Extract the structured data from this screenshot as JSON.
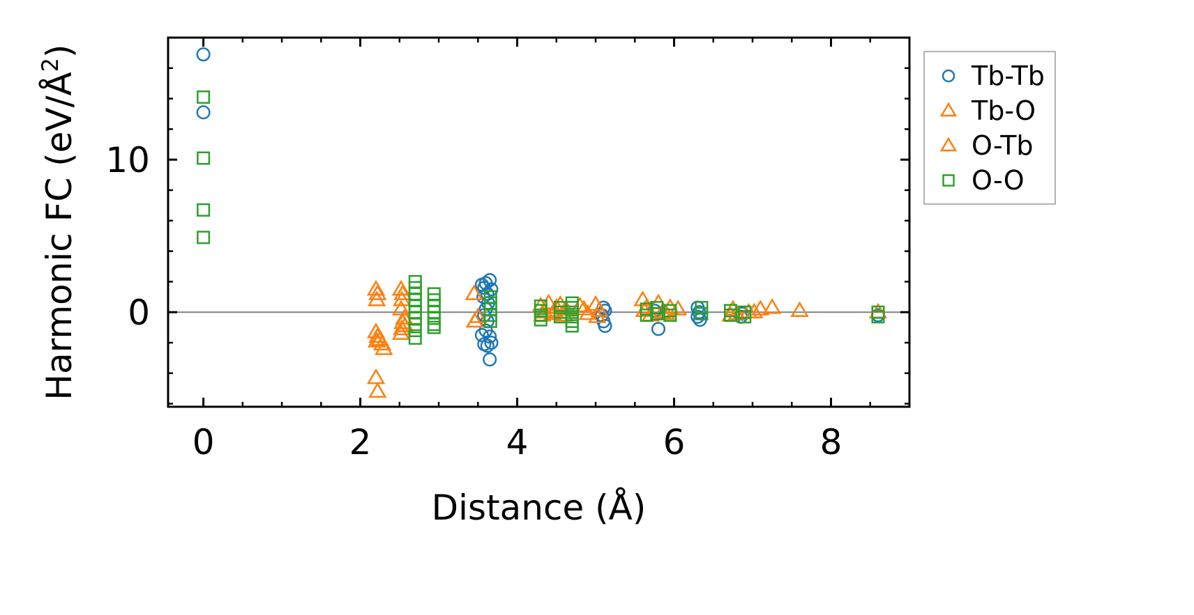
{
  "chart_data": {
    "type": "scatter",
    "xlabel": "Distance (Å)",
    "ylabel": "Harmonic FC (eV/Å²)",
    "ylabel_parts": {
      "main": "Harmonic FC (eV/Å",
      "sup": "2",
      "end": ")"
    },
    "xlim": [
      -0.45,
      9.0
    ],
    "ylim": [
      -6.2,
      18.0
    ],
    "xticks": [
      0,
      2,
      4,
      6,
      8
    ],
    "yticks": [
      0,
      10
    ],
    "x_minor_step": 0.5,
    "y_minor_step": 2,
    "zero_line": true,
    "grid": false,
    "legend_position": "outside-right",
    "series": [
      {
        "name": "Tb-Tb",
        "marker": "circle",
        "color": "#1f77b4",
        "points": [
          [
            0,
            16.9
          ],
          [
            0,
            13.1
          ],
          [
            3.55,
            1.8
          ],
          [
            3.58,
            1.6
          ],
          [
            3.6,
            1.9
          ],
          [
            3.62,
            1.2
          ],
          [
            3.65,
            2.1
          ],
          [
            3.67,
            1.5
          ],
          [
            3.57,
            1.0
          ],
          [
            3.63,
            0.6
          ],
          [
            3.6,
            0.2
          ],
          [
            3.58,
            -0.2
          ],
          [
            3.62,
            -0.6
          ],
          [
            3.6,
            -1.2
          ],
          [
            3.55,
            -1.5
          ],
          [
            3.65,
            -1.6
          ],
          [
            3.58,
            -2.1
          ],
          [
            3.62,
            -2.2
          ],
          [
            3.67,
            -2.0
          ],
          [
            3.65,
            -3.1
          ],
          [
            5.1,
            0.3
          ],
          [
            5.12,
            0.1
          ],
          [
            5.08,
            -0.2
          ],
          [
            5.1,
            -0.6
          ],
          [
            5.12,
            -0.9
          ],
          [
            5.8,
            -1.1
          ],
          [
            5.75,
            0.1
          ],
          [
            6.3,
            0.3
          ],
          [
            6.32,
            0.0
          ],
          [
            6.3,
            -0.3
          ],
          [
            6.33,
            -0.5
          ],
          [
            6.85,
            -0.3
          ],
          [
            6.87,
            -0.1
          ],
          [
            8.6,
            -0.2
          ]
        ]
      },
      {
        "name": "Tb-O",
        "marker": "triangle",
        "color": "#ff7f0e",
        "points": [
          [
            2.2,
            1.5
          ],
          [
            2.22,
            1.2
          ],
          [
            2.21,
            0.8
          ],
          [
            2.2,
            -1.3
          ],
          [
            2.22,
            -1.6
          ],
          [
            2.21,
            -1.9
          ],
          [
            2.2,
            -4.3
          ],
          [
            2.22,
            -5.2
          ],
          [
            2.52,
            1.5
          ],
          [
            2.54,
            1.2
          ],
          [
            2.53,
            0.8
          ],
          [
            2.52,
            0.2
          ],
          [
            2.54,
            -0.7
          ],
          [
            2.53,
            -1.1
          ],
          [
            2.52,
            -1.4
          ],
          [
            3.45,
            1.2
          ],
          [
            3.46,
            -0.6
          ],
          [
            4.3,
            0.4
          ],
          [
            4.35,
            0.0
          ],
          [
            4.4,
            0.6
          ],
          [
            4.45,
            -0.1
          ],
          [
            4.5,
            0.3
          ],
          [
            4.55,
            0.5
          ],
          [
            4.6,
            -0.2
          ],
          [
            4.8,
            0.4
          ],
          [
            4.85,
            0.2
          ],
          [
            4.9,
            -0.1
          ],
          [
            5.0,
            0.5
          ],
          [
            5.05,
            0.1
          ],
          [
            5.6,
            0.8
          ],
          [
            5.65,
            0.3
          ],
          [
            5.7,
            -0.2
          ],
          [
            5.8,
            0.6
          ],
          [
            5.85,
            0.0
          ],
          [
            5.95,
            0.3
          ],
          [
            6.05,
            0.2
          ],
          [
            6.75,
            0.2
          ],
          [
            6.8,
            -0.1
          ],
          [
            6.95,
            0.0
          ],
          [
            7.1,
            0.2
          ],
          [
            7.25,
            0.3
          ],
          [
            7.6,
            0.1
          ],
          [
            8.6,
            0.0
          ]
        ]
      },
      {
        "name": "O-Tb",
        "marker": "triangle",
        "color": "#ff7f0e",
        "points": [
          [
            2.25,
            -1.8
          ],
          [
            2.28,
            -2.1
          ],
          [
            2.3,
            -2.4
          ],
          [
            2.56,
            -0.4
          ],
          [
            2.57,
            -0.9
          ],
          [
            3.5,
            -0.3
          ],
          [
            4.32,
            -0.2
          ],
          [
            4.48,
            0.1
          ],
          [
            4.62,
            0.2
          ],
          [
            5.02,
            -0.3
          ],
          [
            5.62,
            0.1
          ],
          [
            5.9,
            -0.1
          ],
          [
            6.72,
            -0.2
          ],
          [
            7.02,
            0.0
          ]
        ]
      },
      {
        "name": "O-O",
        "marker": "square",
        "color": "#2ca02c",
        "points": [
          [
            0,
            14.1
          ],
          [
            0,
            10.1
          ],
          [
            0,
            6.7
          ],
          [
            0,
            4.9
          ],
          [
            2.7,
            2.0
          ],
          [
            2.7,
            1.6
          ],
          [
            2.7,
            1.2
          ],
          [
            2.7,
            0.8
          ],
          [
            2.7,
            0.4
          ],
          [
            2.7,
            0.0
          ],
          [
            2.7,
            -0.4
          ],
          [
            2.7,
            -0.8
          ],
          [
            2.7,
            -1.2
          ],
          [
            2.7,
            -1.7
          ],
          [
            2.94,
            1.2
          ],
          [
            2.94,
            0.8
          ],
          [
            2.94,
            0.4
          ],
          [
            2.94,
            0.0
          ],
          [
            2.94,
            -0.4
          ],
          [
            2.94,
            -0.8
          ],
          [
            2.94,
            -1.0
          ],
          [
            3.66,
            1.0
          ],
          [
            3.66,
            0.6
          ],
          [
            3.66,
            0.2
          ],
          [
            3.66,
            -0.2
          ],
          [
            3.66,
            -0.6
          ],
          [
            4.3,
            0.4
          ],
          [
            4.3,
            0.1
          ],
          [
            4.3,
            -0.2
          ],
          [
            4.3,
            -0.5
          ],
          [
            4.55,
            0.3
          ],
          [
            4.55,
            0.0
          ],
          [
            4.55,
            -0.3
          ],
          [
            4.7,
            0.6
          ],
          [
            4.7,
            0.3
          ],
          [
            4.7,
            0.0
          ],
          [
            4.7,
            -0.3
          ],
          [
            4.7,
            -0.6
          ],
          [
            4.7,
            -0.9
          ],
          [
            5.65,
            0.2
          ],
          [
            5.65,
            -0.2
          ],
          [
            5.78,
            0.3
          ],
          [
            5.78,
            -0.1
          ],
          [
            5.95,
            0.1
          ],
          [
            5.95,
            -0.2
          ],
          [
            6.35,
            0.3
          ],
          [
            6.35,
            -0.1
          ],
          [
            6.72,
            0.1
          ],
          [
            6.72,
            -0.2
          ],
          [
            6.9,
            0.0
          ],
          [
            6.9,
            -0.3
          ],
          [
            8.6,
            0.0
          ],
          [
            8.6,
            -0.3
          ]
        ]
      }
    ]
  }
}
